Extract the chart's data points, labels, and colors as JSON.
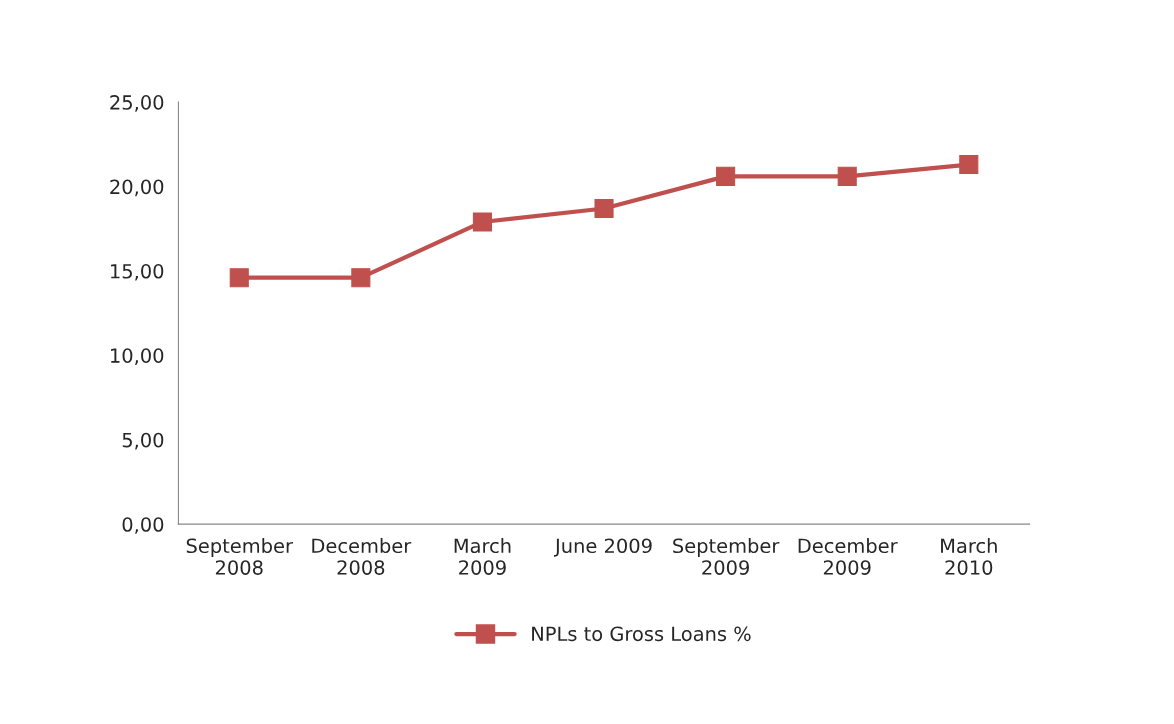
{
  "chart_data": {
    "type": "line",
    "categories": [
      "September\n2008",
      "December\n2008",
      "March\n2009",
      "June 2009",
      "September\n2009",
      "December\n2009",
      "March\n2010"
    ],
    "series": [
      {
        "name": "NPLs to Gross Loans %",
        "color": "#c0504d",
        "values": [
          14.6,
          14.6,
          17.9,
          18.7,
          20.6,
          20.6,
          21.3
        ]
      }
    ],
    "ylim": [
      0,
      25
    ],
    "yticks": [
      {
        "value": 0,
        "label": "0,00"
      },
      {
        "value": 5,
        "label": "5,00"
      },
      {
        "value": 10,
        "label": "10,00"
      },
      {
        "value": 15,
        "label": "15,00"
      },
      {
        "value": 20,
        "label": "20,00"
      },
      {
        "value": 25,
        "label": "25,00"
      }
    ],
    "grid": false,
    "legend": "bottom",
    "marker": "square",
    "line_style": "solid"
  }
}
